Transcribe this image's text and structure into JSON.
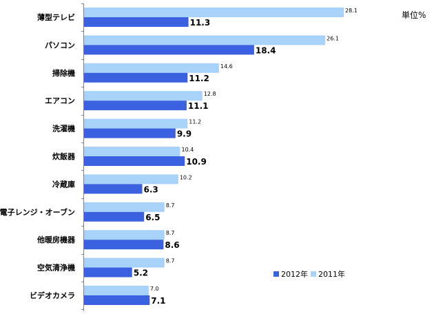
{
  "chart_data": {
    "type": "bar",
    "orientation": "horizontal",
    "unit_label": "単位%",
    "categories": [
      "薄型テレビ",
      "パソコン",
      "掃除機",
      "エアコン",
      "洗濯機",
      "炊飯器",
      "冷蔵庫",
      "電子レンジ・オーブン",
      "他暖房機器",
      "空気清浄機",
      "ビデオカメラ"
    ],
    "series": [
      {
        "name": "2011年",
        "color": "#a9d2fb",
        "values": [
          28.1,
          26.1,
          14.6,
          12.8,
          11.2,
          10.4,
          10.2,
          8.7,
          8.7,
          8.7,
          7.0
        ],
        "labels": [
          "28.1",
          "26.1",
          "14.6",
          "12.8",
          "11.2",
          "10.4",
          "10.2",
          "8.7",
          "8.7",
          "8.7",
          "7.0"
        ]
      },
      {
        "name": "2012年",
        "color": "#3c61e0",
        "values": [
          11.3,
          18.4,
          11.2,
          11.1,
          9.9,
          10.9,
          6.3,
          6.5,
          8.6,
          5.2,
          7.1
        ],
        "labels": [
          "11.3",
          "18.4",
          "11.2",
          "11.1",
          "9.9",
          "10.9",
          "6.3",
          "6.5",
          "8.6",
          "5.2",
          "7.1"
        ]
      }
    ],
    "xlim": [
      0,
      28.1
    ],
    "legend": {
      "position": "bottom-right",
      "order": [
        "2012年",
        "2011年"
      ]
    },
    "grid": false
  }
}
